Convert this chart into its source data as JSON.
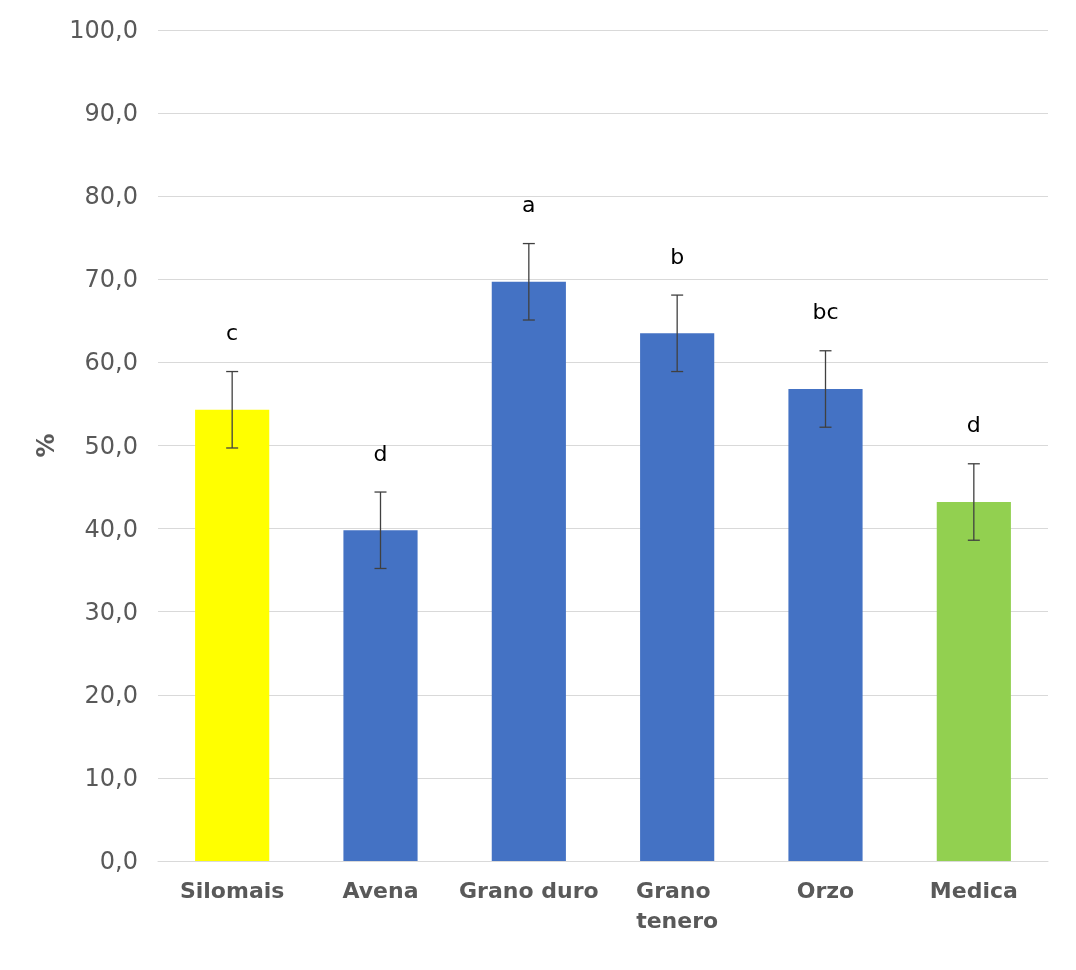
{
  "chart_data": {
    "type": "bar",
    "ylabel": "%",
    "categories": [
      "Silomais",
      "Avena",
      "Grano duro",
      "Grano tenero",
      "Orzo",
      "Medica"
    ],
    "values": [
      54.3,
      39.8,
      69.7,
      63.5,
      56.8,
      43.2
    ],
    "colors": [
      "#ffff00",
      "#4472c4",
      "#4472c4",
      "#4472c4",
      "#4472c4",
      "#92d050"
    ],
    "errors": [
      4.6,
      4.6,
      4.6,
      4.6,
      4.6,
      4.6
    ],
    "ylim": [
      0,
      100
    ],
    "yticks": [
      {
        "value": 0,
        "label": "0,0"
      },
      {
        "value": 10,
        "label": "10,0"
      },
      {
        "value": 20,
        "label": "20,0"
      },
      {
        "value": 30,
        "label": "30,0"
      },
      {
        "value": 40,
        "label": "40,0"
      },
      {
        "value": 50,
        "label": "50,0"
      },
      {
        "value": 60,
        "label": "60,0"
      },
      {
        "value": 70,
        "label": "70,0"
      },
      {
        "value": 80,
        "label": "80,0"
      },
      {
        "value": 90,
        "label": "90,0"
      },
      {
        "value": 100,
        "label": "100,0"
      }
    ],
    "grid": "y",
    "annotations": [
      "c",
      "d",
      "a",
      "b",
      "bc",
      "d"
    ]
  }
}
